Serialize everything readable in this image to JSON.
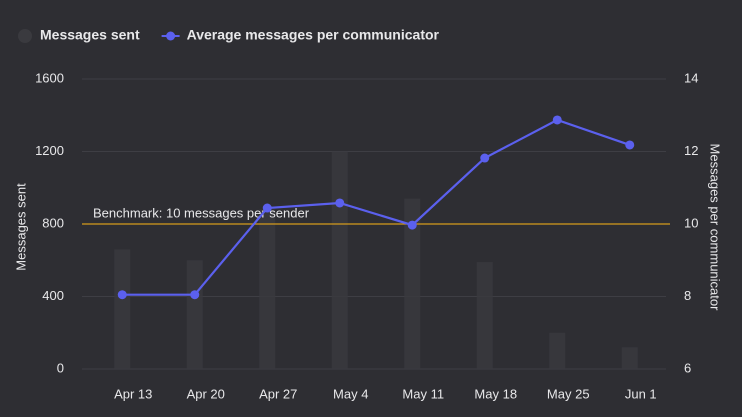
{
  "chart_data": {
    "type": "bar_line",
    "categories": [
      "Apr 13",
      "Apr 20",
      "Apr 27",
      "May 4",
      "May 11",
      "May 18",
      "May 25",
      "Jun 1"
    ],
    "series": [
      {
        "name": "Messages sent",
        "type": "bar",
        "color": "#3a3a3f",
        "values": [
          660,
          600,
          880,
          1200,
          940,
          590,
          200,
          120
        ]
      },
      {
        "name": "Average messages per communicator",
        "type": "line",
        "axis": "y2",
        "color": "#5b60ee",
        "values": [
          8.05,
          8.05,
          10.44,
          10.58,
          9.97,
          11.82,
          12.87,
          12.18
        ]
      }
    ],
    "ylabel": "Messages sent",
    "y2label": "Messages per communicator",
    "ylim": [
      0,
      1600
    ],
    "yticks": [
      0,
      400,
      800,
      1200,
      1600
    ],
    "y2lim": [
      6,
      14
    ],
    "y2ticks": [
      6,
      8,
      10,
      12,
      14
    ],
    "benchmark": {
      "value": 10,
      "axis": "y2",
      "label": "Benchmark: 10 messages per sender",
      "color": "#d49a1c"
    },
    "grid": true
  }
}
